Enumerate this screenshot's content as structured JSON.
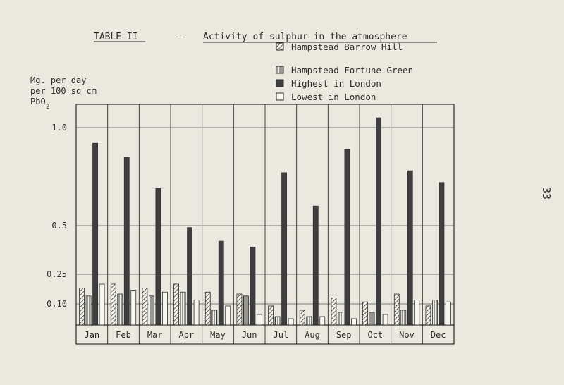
{
  "page_number": "33",
  "chart_data": {
    "type": "bar",
    "table_label": "TABLE II",
    "dash": "-",
    "title": "Activity of sulphur in the atmosphere",
    "ylabel_lines": [
      "Mg. per day",
      "per 100 sq cm",
      "PbO",
      "2"
    ],
    "y_ticks": [
      {
        "value": 1.0,
        "label": "1.0"
      },
      {
        "value": 0.5,
        "label": "0.5"
      },
      {
        "value": 0.25,
        "label": "0.25"
      },
      {
        "value": 0.1,
        "label": "0.10"
      }
    ],
    "ylim": [
      0,
      1.1
    ],
    "grid": true,
    "legend_position": "top-right",
    "categories": [
      "Jan",
      "Feb",
      "Mar",
      "Apr",
      "May",
      "Jun",
      "Jul",
      "Aug",
      "Sep",
      "Oct",
      "Nov",
      "Dec"
    ],
    "series": [
      {
        "name": "Hampstead Barrow Hill",
        "pattern": "diagonal",
        "values": [
          0.18,
          0.2,
          0.18,
          0.2,
          0.16,
          0.15,
          0.09,
          0.07,
          0.13,
          0.11,
          0.15,
          0.09
        ]
      },
      {
        "name": "Hampstead Fortune Green",
        "pattern": "vertical",
        "values": [
          0.14,
          0.15,
          0.14,
          0.16,
          0.07,
          0.14,
          0.04,
          0.04,
          0.06,
          0.06,
          0.07,
          0.12
        ]
      },
      {
        "name": "Highest in London",
        "pattern": "solid",
        "values": [
          0.92,
          0.85,
          0.69,
          0.49,
          0.42,
          0.39,
          0.77,
          0.6,
          0.89,
          1.05,
          0.78,
          0.72
        ]
      },
      {
        "name": "Lowest in London",
        "pattern": "open",
        "values": [
          0.2,
          0.17,
          0.16,
          0.12,
          0.09,
          0.05,
          0.03,
          0.04,
          0.03,
          0.05,
          0.12,
          0.11
        ]
      }
    ],
    "colors": {
      "ink": "#2e2e2e",
      "paper": "#ebe9df",
      "solid": "#3e3e3e",
      "open": "#f7f6ef"
    }
  }
}
